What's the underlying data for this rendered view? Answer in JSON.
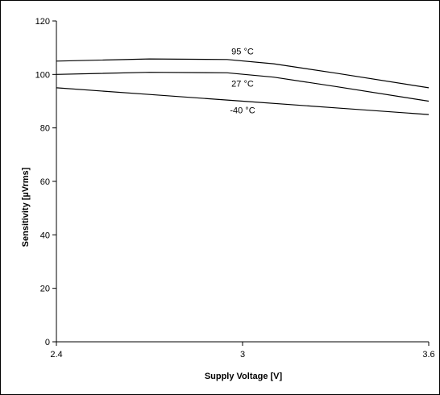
{
  "chart_data": {
    "type": "line",
    "title": "",
    "xlabel": "Supply Voltage [V]",
    "ylabel": "Sensitivity [µVrms]",
    "xlim": [
      2.4,
      3.6
    ],
    "ylim": [
      0,
      120
    ],
    "x_ticks": [
      2.4,
      3,
      3.6
    ],
    "x_tick_labels": [
      "2.4",
      "3",
      "3.6"
    ],
    "y_ticks": [
      0,
      20,
      40,
      60,
      80,
      100,
      120
    ],
    "y_tick_labels": [
      "0",
      "20",
      "40",
      "60",
      "80",
      "100",
      "120"
    ],
    "grid": false,
    "legend": "none",
    "series": [
      {
        "name": "95 °C",
        "x": [
          2.4,
          2.7,
          2.95,
          3.1,
          3.3,
          3.6
        ],
        "y": [
          105,
          105.8,
          105.6,
          104,
          100.5,
          95
        ]
      },
      {
        "name": "27 °C",
        "x": [
          2.4,
          2.7,
          2.95,
          3.1,
          3.3,
          3.6
        ],
        "y": [
          100,
          100.8,
          100.6,
          99,
          95.5,
          90
        ]
      },
      {
        "name": "-40 °C",
        "x": [
          2.4,
          2.7,
          3.0,
          3.3,
          3.6
        ],
        "y": [
          95,
          92.5,
          90,
          87.5,
          85
        ]
      }
    ],
    "curve_labels": [
      {
        "text": "95 °C",
        "x": 3.0,
        "y": 107.5
      },
      {
        "text": "27 °C",
        "x": 3.0,
        "y": 95.5
      },
      {
        "text": "-40 °C",
        "x": 3.0,
        "y": 85.5
      }
    ],
    "line_color": "#000000"
  }
}
